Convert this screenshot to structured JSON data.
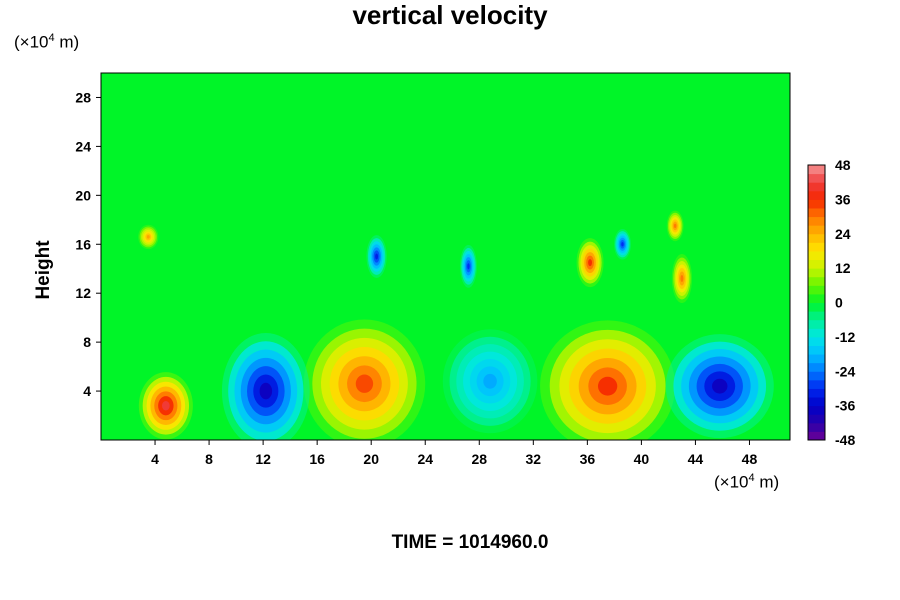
{
  "chart_data": {
    "type": "heatmap",
    "title": "vertical velocity",
    "xlabel": "",
    "ylabel": "Height",
    "x_unit_prefix": "(×10",
    "x_unit_exp": "4",
    "x_unit_suffix": " m)",
    "y_unit_prefix": "(×10",
    "y_unit_exp": "4",
    "y_unit_suffix": " m)",
    "xlim": [
      0,
      51
    ],
    "ylim": [
      0,
      30
    ],
    "x_ticks": [
      4,
      8,
      12,
      16,
      20,
      24,
      28,
      32,
      36,
      40,
      44,
      48
    ],
    "y_ticks": [
      4,
      8,
      12,
      16,
      20,
      24,
      28
    ],
    "colorbar": {
      "range": [
        -48,
        48
      ],
      "ticks": [
        48,
        36,
        24,
        12,
        0,
        -12,
        -24,
        -36,
        -48
      ]
    },
    "background_value": 0,
    "updrafts": [
      {
        "x": 4.8,
        "y": 2.8,
        "rx": 1.6,
        "ry": 2.2,
        "value": 42
      },
      {
        "x": 19.5,
        "y": 4.6,
        "rx": 3.6,
        "ry": 4.2,
        "value": 34
      },
      {
        "x": 37.5,
        "y": 4.4,
        "rx": 4.0,
        "ry": 4.3,
        "value": 36
      },
      {
        "x": 36.2,
        "y": 14.5,
        "rx": 0.8,
        "ry": 1.6,
        "value": 36
      },
      {
        "x": 43.0,
        "y": 13.2,
        "rx": 0.6,
        "ry": 1.6,
        "value": 30
      },
      {
        "x": 42.5,
        "y": 17.5,
        "rx": 0.5,
        "ry": 1.0,
        "value": 30
      },
      {
        "x": 3.5,
        "y": 16.6,
        "rx": 0.6,
        "ry": 0.8,
        "value": 26
      }
    ],
    "downdrafts": [
      {
        "x": 12.2,
        "y": 4.0,
        "rx": 2.6,
        "ry": 3.8,
        "value": -38
      },
      {
        "x": 28.8,
        "y": 4.8,
        "rx": 2.8,
        "ry": 3.4,
        "value": -20
      },
      {
        "x": 45.8,
        "y": 4.4,
        "rx": 3.2,
        "ry": 3.4,
        "value": -38
      },
      {
        "x": 20.4,
        "y": 15.0,
        "rx": 0.6,
        "ry": 1.4,
        "value": -32
      },
      {
        "x": 27.2,
        "y": 14.2,
        "rx": 0.5,
        "ry": 1.4,
        "value": -30
      },
      {
        "x": 38.6,
        "y": 16.0,
        "rx": 0.5,
        "ry": 1.0,
        "value": -30
      }
    ],
    "time_label": "TIME = 1014960.0"
  }
}
